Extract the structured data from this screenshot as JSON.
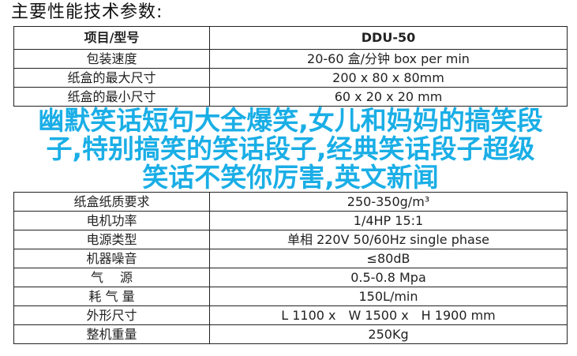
{
  "title": "主要性能技术参数:",
  "table": {
    "header": {
      "label": "项目/型号",
      "value": "DDU-50"
    },
    "rows": [
      {
        "label": "包装速度",
        "value": "20-60 盒/分钟 box per min"
      },
      {
        "label": "纸盒的最大尺寸",
        "value": "200 x 80 x 80mm"
      },
      {
        "label": "纸盒的最小尺寸",
        "value": "60 x 20 x 20 mm"
      },
      {
        "label": "纸盒纸质要求",
        "value": "250-350g/m³"
      },
      {
        "label": "电机功率",
        "value": "1/4HP 15:1"
      },
      {
        "label": "电源类型",
        "value": "单相 220V 50/60Hz single phase"
      },
      {
        "label": "机器噪音",
        "value": "≤80dB"
      },
      {
        "label": "气　 源",
        "value": "0.5-0.8 Mpa"
      },
      {
        "label": "耗 气 量",
        "value": "150L/min"
      },
      {
        "label": "外形尺寸",
        "value": "L 1100 x　W 1500 x　H 1900 mm"
      },
      {
        "label": "整机重量",
        "value": "250Kg"
      }
    ]
  },
  "overlay": {
    "lines": [
      "幽默笑话短句大全爆笑,女儿和妈妈的搞笑段",
      "子,特别搞笑的笑话段子,经典笑话段子超级",
      "笑话不笑你厉害,英文新闻"
    ],
    "color": "#1aaee6"
  }
}
